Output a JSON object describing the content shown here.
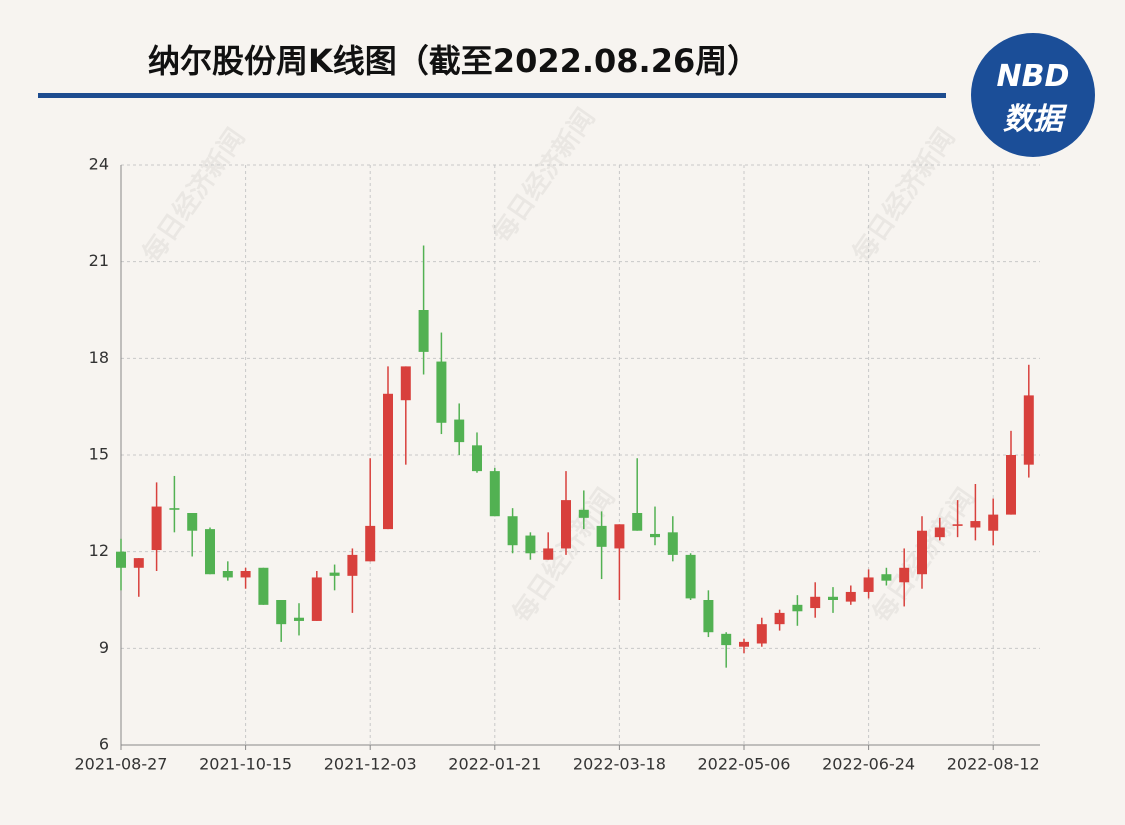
{
  "header": {
    "title": "纳尔股份周K线图（截至2022.08.26周）",
    "logo_top": "NBD",
    "logo_bottom": "数据"
  },
  "watermark": "每日经济新闻",
  "chart_data": {
    "type": "candlestick",
    "categories": [
      "2021-08-27",
      null,
      null,
      null,
      null,
      null,
      null,
      "2021-10-15",
      null,
      null,
      null,
      null,
      null,
      null,
      "2021-12-03",
      null,
      null,
      null,
      null,
      null,
      null,
      "2022-01-21",
      null,
      null,
      null,
      null,
      null,
      null,
      "2022-03-18",
      null,
      null,
      null,
      null,
      null,
      null,
      "2022-05-06",
      null,
      null,
      null,
      null,
      null,
      null,
      "2022-06-24",
      null,
      null,
      null,
      null,
      null,
      null,
      "2022-08-12",
      null,
      null
    ],
    "open": [
      12.0,
      11.5,
      12.05,
      13.35,
      13.2,
      12.7,
      11.4,
      11.2,
      11.5,
      10.5,
      9.95,
      9.85,
      11.35,
      11.25,
      11.7,
      12.7,
      16.7,
      19.5,
      17.9,
      16.1,
      15.3,
      14.5,
      13.1,
      12.5,
      11.75,
      12.1,
      13.3,
      12.8,
      12.1,
      13.2,
      12.55,
      12.6,
      11.9,
      10.5,
      9.45,
      9.05,
      9.15,
      9.75,
      10.35,
      10.25,
      10.6,
      10.45,
      10.75,
      11.3,
      11.05,
      11.3,
      12.45,
      12.8,
      12.75,
      12.65,
      13.15,
      14.7
    ],
    "high": [
      12.4,
      11.8,
      14.15,
      14.35,
      13.2,
      12.75,
      11.7,
      11.5,
      11.5,
      10.5,
      10.4,
      11.4,
      11.6,
      12.1,
      14.9,
      17.75,
      17.75,
      21.5,
      18.8,
      16.6,
      15.7,
      14.6,
      13.35,
      12.6,
      12.6,
      14.5,
      13.9,
      13.25,
      12.85,
      14.9,
      13.4,
      13.1,
      11.95,
      10.8,
      9.5,
      9.3,
      9.95,
      10.2,
      10.65,
      11.05,
      10.9,
      10.95,
      11.45,
      11.5,
      12.1,
      13.1,
      13.05,
      13.6,
      14.1,
      13.65,
      15.75,
      17.8
    ],
    "low": [
      10.8,
      10.6,
      11.4,
      12.6,
      11.85,
      11.3,
      11.1,
      10.85,
      10.35,
      9.2,
      9.4,
      9.85,
      10.8,
      10.1,
      11.7,
      12.7,
      14.7,
      17.5,
      15.65,
      15.0,
      14.45,
      13.1,
      11.95,
      11.75,
      11.75,
      11.9,
      12.7,
      11.15,
      10.5,
      12.65,
      12.2,
      11.7,
      10.5,
      9.35,
      8.4,
      8.85,
      9.05,
      9.55,
      9.7,
      9.95,
      10.1,
      10.35,
      10.55,
      10.95,
      10.3,
      10.85,
      12.35,
      12.45,
      12.35,
      12.2,
      13.15,
      14.3
    ],
    "close": [
      11.5,
      11.8,
      13.4,
      13.3,
      12.65,
      11.3,
      11.2,
      11.4,
      10.35,
      9.75,
      9.85,
      11.2,
      11.25,
      11.9,
      12.8,
      16.9,
      17.75,
      18.2,
      16.0,
      15.4,
      14.5,
      13.1,
      12.2,
      11.95,
      12.1,
      13.6,
      13.05,
      12.15,
      12.85,
      12.65,
      12.45,
      11.9,
      10.55,
      9.5,
      9.1,
      9.2,
      9.75,
      10.1,
      10.15,
      10.6,
      10.5,
      10.75,
      11.2,
      11.1,
      11.5,
      12.65,
      12.75,
      12.85,
      12.95,
      13.15,
      15.0,
      16.85
    ],
    "up_color": "#d8403c",
    "down_color": "#52b152",
    "ylim": [
      6,
      24
    ],
    "yticks": [
      6,
      9,
      12,
      15,
      18,
      21,
      24
    ],
    "grid": true
  }
}
